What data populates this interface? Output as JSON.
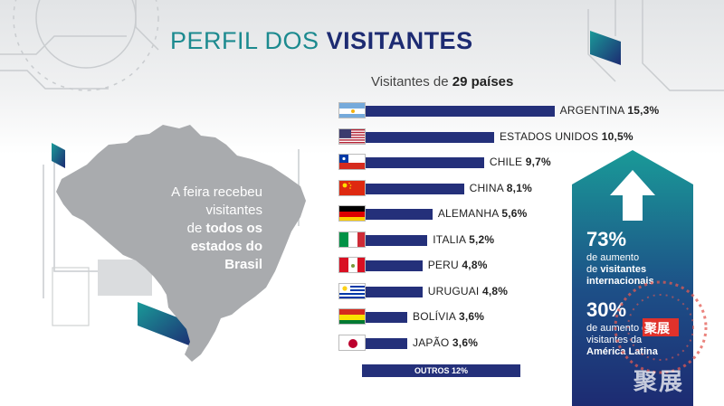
{
  "header": {
    "title_light": "PERFIL DOS",
    "title_bold": "VISITANTES"
  },
  "subtitle": {
    "prefix": "Visitantes de",
    "bold": "29 países"
  },
  "brazil_panel": {
    "line1": "A feira recebeu",
    "line2": "visitantes",
    "line3_light": "de",
    "line3_bold": "todos os",
    "line4": "estados do",
    "line5": "Brasil"
  },
  "stats": {
    "stat1_value": "73%",
    "stat1_line1": "de aumento",
    "stat1_line2_light": "de",
    "stat1_line2_bold": "visitantes",
    "stat1_line3": "internacionais",
    "stat2_value": "30%",
    "stat2_line1": "de aumento de",
    "stat2_line2": "visitantes da",
    "stat2_line3": "América Latina"
  },
  "watermark": {
    "text": "聚展"
  },
  "colors": {
    "bar": "#24307a",
    "teal": "#1c8a8f",
    "navy": "#1d2b72",
    "map": "#a9abae"
  },
  "chart_data": {
    "type": "bar",
    "orientation": "horizontal",
    "categories": [
      "ARGENTINA",
      "ESTADOS UNIDOS",
      "CHILE",
      "CHINA",
      "ALEMANHA",
      "ITALIA",
      "PERU",
      "URUGUAI",
      "BOLÍVIA",
      "JAPÃO",
      "OUTROS"
    ],
    "values": [
      15.3,
      10.5,
      9.7,
      8.1,
      5.6,
      5.2,
      4.8,
      4.8,
      3.6,
      3.6,
      12
    ],
    "value_labels": [
      "15,3%",
      "10,5%",
      "9,7%",
      "8,1%",
      "5,6%",
      "5,2%",
      "4,8%",
      "4,8%",
      "3,6%",
      "3,6%",
      "12%"
    ],
    "flags": [
      "argentina-flag-icon",
      "usa-flag-icon",
      "chile-flag-icon",
      "china-flag-icon",
      "germany-flag-icon",
      "italy-flag-icon",
      "peru-flag-icon",
      "uruguay-flag-icon",
      "bolivia-flag-icon",
      "japan-flag-icon",
      ""
    ],
    "unit": "%",
    "title": "",
    "xlabel": "",
    "ylabel": ""
  }
}
